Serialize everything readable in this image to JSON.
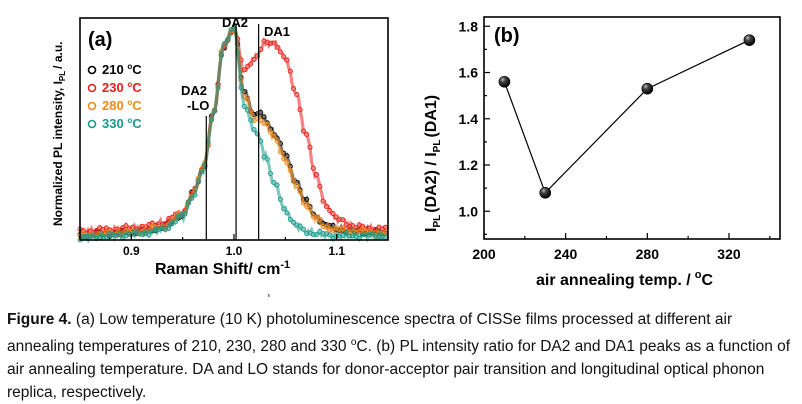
{
  "figure": {
    "panel_a": {
      "label": "(a)",
      "ylabel_main": "Normalized PL intensity, I",
      "ylabel_sub": "PL",
      "ylabel_unit": "/ a.u.",
      "xlabel": "Raman Shift/ cm",
      "xlabel_sup": "-1",
      "peak_labels": [
        "DA2",
        "DA1",
        "DA2",
        "-LO"
      ],
      "legend": [
        {
          "temp": "210",
          "unit_sup": "o",
          "unit": "C",
          "color": "#000000"
        },
        {
          "temp": "230",
          "unit_sup": "o",
          "unit": "C",
          "color": "#e8201c"
        },
        {
          "temp": "280",
          "unit_sup": "o",
          "unit": "C",
          "color": "#f08a1c"
        },
        {
          "temp": "330",
          "unit_sup": "o",
          "unit": "C",
          "color": "#1a9a8c"
        }
      ],
      "x_ticks": [
        "0.9",
        "1.0",
        "1.1"
      ]
    },
    "panel_b": {
      "label": "(b)",
      "ylabel": "I",
      "ylabel_sub1": "PL",
      "ylabel_mid": "(DA2) / I",
      "ylabel_sub2": "PL",
      "ylabel_end": "(DA1)",
      "xlabel": "air annealing temp. /",
      "xlabel_sup": "o",
      "xlabel_unit": "C",
      "x_ticks": [
        "200",
        "240",
        "280",
        "320"
      ],
      "y_ticks": [
        "1.0",
        "1.2",
        "1.4",
        "1.6",
        "1.8"
      ]
    }
  },
  "chart_data": [
    {
      "type": "line",
      "panel": "(a)",
      "xlabel": "Raman Shift/ cm-1",
      "ylabel": "Normalized PL intensity, IPL / a.u.",
      "xlim": [
        0.85,
        1.15
      ],
      "ylim": [
        0,
        1.05
      ],
      "series": [
        {
          "name": "210 oC",
          "color": "#000000",
          "x": [
            0.85,
            0.88,
            0.91,
            0.93,
            0.95,
            0.96,
            0.97,
            0.98,
            0.99,
            1.0,
            1.01,
            1.02,
            1.025,
            1.03,
            1.04,
            1.05,
            1.06,
            1.07,
            1.08,
            1.09,
            1.1,
            1.12,
            1.15
          ],
          "y": [
            0.02,
            0.03,
            0.04,
            0.06,
            0.12,
            0.22,
            0.34,
            0.6,
            0.92,
            1.0,
            0.7,
            0.59,
            0.6,
            0.57,
            0.5,
            0.4,
            0.28,
            0.18,
            0.11,
            0.07,
            0.05,
            0.04,
            0.03
          ]
        },
        {
          "name": "230 oC",
          "color": "#e8201c",
          "x": [
            0.85,
            0.88,
            0.91,
            0.93,
            0.95,
            0.96,
            0.97,
            0.98,
            0.99,
            1.0,
            1.01,
            1.02,
            1.03,
            1.04,
            1.05,
            1.06,
            1.07,
            1.08,
            1.09,
            1.1,
            1.12,
            1.15
          ],
          "y": [
            0.04,
            0.05,
            0.06,
            0.08,
            0.13,
            0.22,
            0.34,
            0.6,
            0.92,
            1.0,
            0.8,
            0.86,
            0.93,
            0.93,
            0.86,
            0.7,
            0.5,
            0.3,
            0.16,
            0.1,
            0.06,
            0.05
          ]
        },
        {
          "name": "280 oC",
          "color": "#f08a1c",
          "x": [
            0.85,
            0.88,
            0.91,
            0.93,
            0.95,
            0.96,
            0.97,
            0.98,
            0.99,
            1.0,
            1.01,
            1.02,
            1.025,
            1.03,
            1.04,
            1.05,
            1.06,
            1.07,
            1.08,
            1.09,
            1.1,
            1.12,
            1.15
          ],
          "y": [
            0.02,
            0.03,
            0.04,
            0.06,
            0.12,
            0.22,
            0.34,
            0.6,
            0.92,
            1.0,
            0.68,
            0.57,
            0.58,
            0.55,
            0.48,
            0.38,
            0.26,
            0.17,
            0.1,
            0.06,
            0.05,
            0.04,
            0.03
          ]
        },
        {
          "name": "330 oC",
          "color": "#1a9a8c",
          "x": [
            0.85,
            0.88,
            0.91,
            0.93,
            0.95,
            0.96,
            0.97,
            0.98,
            0.99,
            1.0,
            1.01,
            1.02,
            1.025,
            1.03,
            1.04,
            1.05,
            1.06,
            1.07,
            1.08,
            1.1,
            1.15
          ],
          "y": [
            0.01,
            0.02,
            0.03,
            0.05,
            0.11,
            0.21,
            0.33,
            0.6,
            0.92,
            1.0,
            0.64,
            0.52,
            0.48,
            0.4,
            0.26,
            0.14,
            0.07,
            0.04,
            0.03,
            0.02,
            0.02
          ]
        }
      ],
      "vertical_lines_x": [
        0.973,
        1.002,
        1.024
      ]
    },
    {
      "type": "scatter",
      "panel": "(b)",
      "xlabel": "air annealing temp. / oC",
      "ylabel": "IPL(DA2) / IPL(DA1)",
      "xlim": [
        200,
        345
      ],
      "ylim": [
        0.88,
        1.84
      ],
      "x_ticks": [
        200,
        240,
        280,
        320
      ],
      "y_ticks": [
        1.0,
        1.2,
        1.4,
        1.6,
        1.8
      ],
      "x": [
        210,
        230,
        280,
        330
      ],
      "y": [
        1.56,
        1.08,
        1.53,
        1.74
      ],
      "connected": true,
      "marker_color": "#000000"
    }
  ],
  "caption": {
    "label": "Figure 4.",
    "part1": " (a) Low temperature (10 K) photoluminescence spectra of CISSe films processed at different air annealing temperatures of 210, 230, 280 and 330 ",
    "sup": "o",
    "part2": "C. (b) PL intensity ratio for DA2 and DA1 peaks as a function of air annealing temperature. DA and LO stands for donor-acceptor pair transition and longitudinal optical phonon replica, respectively."
  }
}
